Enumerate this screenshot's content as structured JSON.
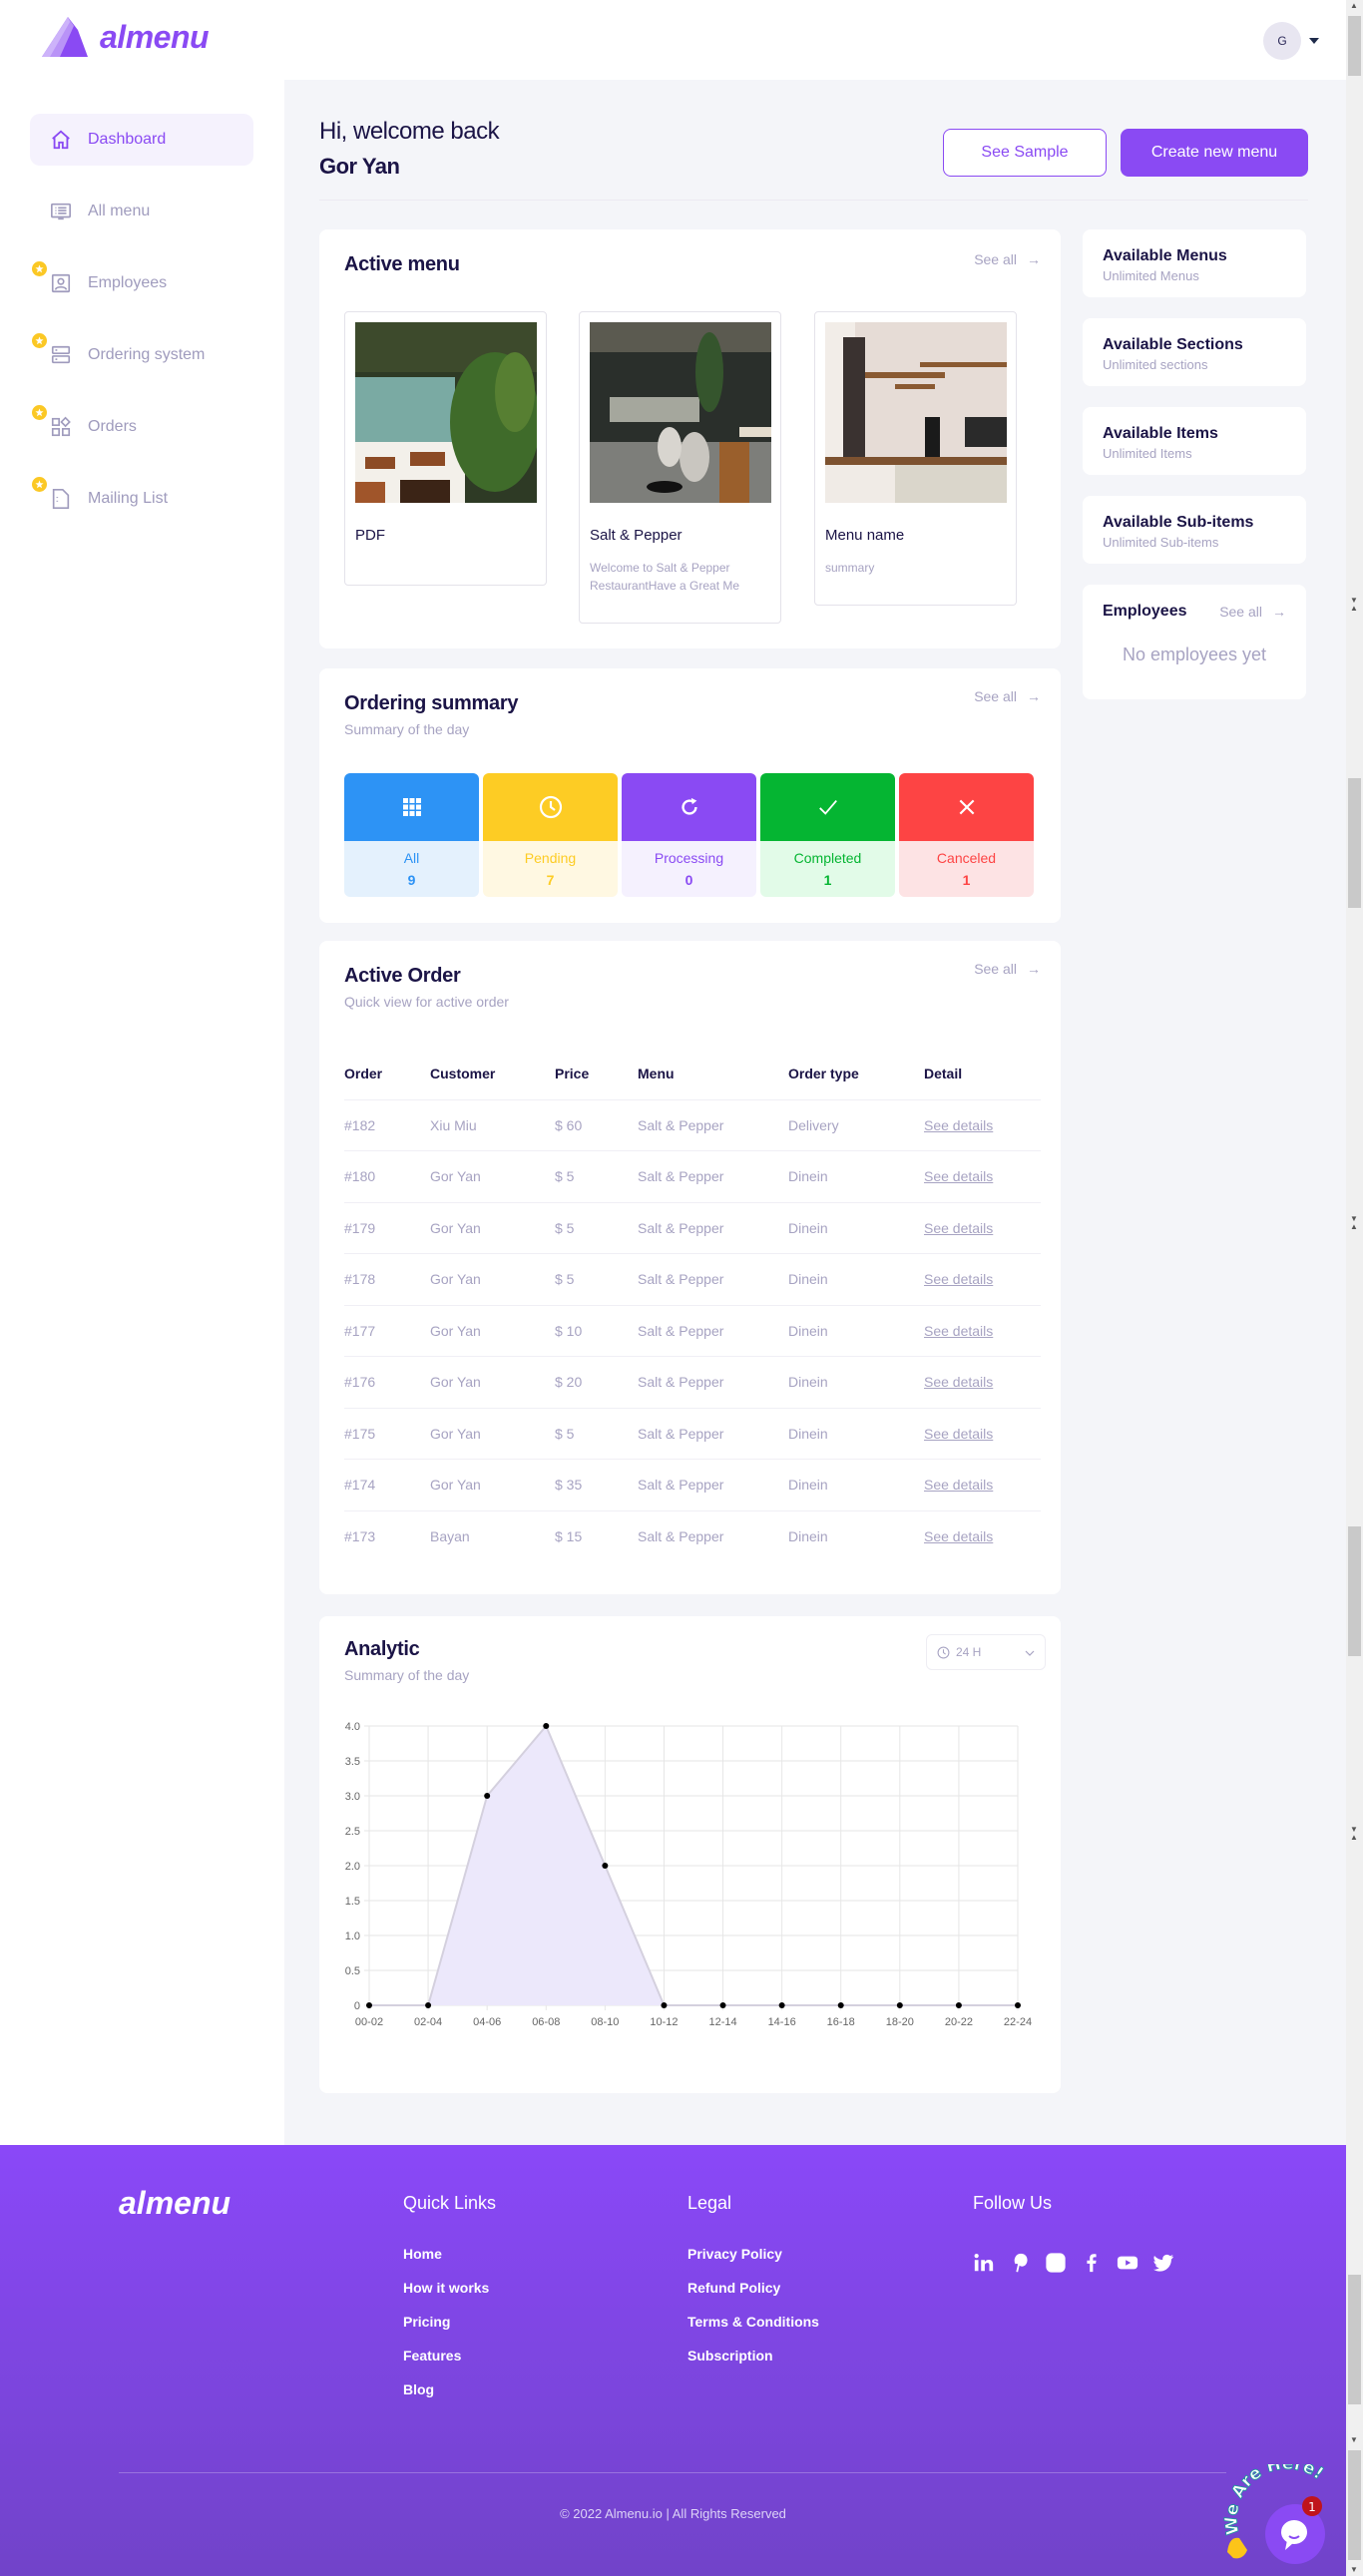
{
  "header": {
    "brand": "almenu",
    "avatar_initial": "G"
  },
  "sidebar": {
    "items": [
      {
        "label": "Dashboard",
        "icon": "home-icon",
        "active": true,
        "premium": false
      },
      {
        "label": "All menu",
        "icon": "menu-list-icon",
        "active": false,
        "premium": false
      },
      {
        "label": "Employees",
        "icon": "employee-badge-icon",
        "active": false,
        "premium": true
      },
      {
        "label": "Ordering system",
        "icon": "server-icon",
        "active": false,
        "premium": true
      },
      {
        "label": "Orders",
        "icon": "grid-diamond-icon",
        "active": false,
        "premium": true
      },
      {
        "label": "Mailing List",
        "icon": "document-icon",
        "active": false,
        "premium": true
      }
    ]
  },
  "greeting": {
    "hi": "Hi, welcome back",
    "name": "Gor Yan"
  },
  "actions": {
    "see_sample": "See Sample",
    "create_menu": "Create new menu"
  },
  "active_menu": {
    "title": "Active menu",
    "see_all": "See all",
    "menus": [
      {
        "name": "PDF",
        "description": ""
      },
      {
        "name": "Salt & Pepper",
        "description": "Welcome to Salt & Pepper RestaurantHave a Great Me"
      },
      {
        "name": "Menu name",
        "description": "summary"
      }
    ]
  },
  "stats": [
    {
      "title": "Available Menus",
      "sub": "Unlimited Menus"
    },
    {
      "title": "Available Sections",
      "sub": "Unlimited sections"
    },
    {
      "title": "Available Items",
      "sub": "Unlimited Items"
    },
    {
      "title": "Available Sub-items",
      "sub": "Unlimited Sub-items"
    }
  ],
  "employees": {
    "title": "Employees",
    "see_all": "See all",
    "empty": "No employees yet"
  },
  "ordering_summary": {
    "title": "Ordering summary",
    "subtitle": "Summary of the day",
    "see_all": "See all",
    "tiles": [
      {
        "label": "All",
        "count": "9",
        "icon": "grid-icon",
        "color": "#2d93f5",
        "bg": "#e4f1fd"
      },
      {
        "label": "Pending",
        "count": "7",
        "icon": "clock-icon",
        "color": "#fdcc24",
        "bg": "#fff8e2"
      },
      {
        "label": "Processing",
        "count": "0",
        "icon": "refresh-icon",
        "color": "#8a4af3",
        "bg": "#f5f1fe"
      },
      {
        "label": "Completed",
        "count": "1",
        "icon": "check-icon",
        "color": "#05b532",
        "bg": "#e2fbe8"
      },
      {
        "label": "Canceled",
        "count": "1",
        "icon": "close-icon",
        "color": "#fd4444",
        "bg": "#fde3e4"
      }
    ]
  },
  "active_order": {
    "title": "Active Order",
    "subtitle": "Quick view for active order",
    "see_all": "See all",
    "columns": [
      "Order",
      "Customer",
      "Price",
      "Menu",
      "Order type",
      "Detail"
    ],
    "rows": [
      {
        "order": "#182",
        "customer": "Xiu Miu",
        "price": "$ 60",
        "menu": "Salt & Pepper",
        "type": "Delivery",
        "detail": "See details"
      },
      {
        "order": "#180",
        "customer": "Gor Yan",
        "price": "$ 5",
        "menu": "Salt & Pepper",
        "type": "Dinein",
        "detail": "See details"
      },
      {
        "order": "#179",
        "customer": "Gor Yan",
        "price": "$ 5",
        "menu": "Salt & Pepper",
        "type": "Dinein",
        "detail": "See details"
      },
      {
        "order": "#178",
        "customer": "Gor Yan",
        "price": "$ 5",
        "menu": "Salt & Pepper",
        "type": "Dinein",
        "detail": "See details"
      },
      {
        "order": "#177",
        "customer": "Gor Yan",
        "price": "$ 10",
        "menu": "Salt & Pepper",
        "type": "Dinein",
        "detail": "See details"
      },
      {
        "order": "#176",
        "customer": "Gor Yan",
        "price": "$ 20",
        "menu": "Salt & Pepper",
        "type": "Dinein",
        "detail": "See details"
      },
      {
        "order": "#175",
        "customer": "Gor Yan",
        "price": "$ 5",
        "menu": "Salt & Pepper",
        "type": "Dinein",
        "detail": "See details"
      },
      {
        "order": "#174",
        "customer": "Gor Yan",
        "price": "$ 35",
        "menu": "Salt & Pepper",
        "type": "Dinein",
        "detail": "See details"
      },
      {
        "order": "#173",
        "customer": "Bayan",
        "price": "$ 15",
        "menu": "Salt & Pepper",
        "type": "Dinein",
        "detail": "See details"
      }
    ]
  },
  "analytic": {
    "title": "Analytic",
    "subtitle": "Summary of the day",
    "range": "24 H"
  },
  "chart_data": {
    "type": "area",
    "title": "Analytic",
    "categories": [
      "00-02",
      "02-04",
      "04-06",
      "06-08",
      "08-10",
      "10-12",
      "12-14",
      "14-16",
      "16-18",
      "18-20",
      "20-22",
      "22-24"
    ],
    "values": [
      0,
      0,
      3,
      4,
      2,
      0,
      0,
      0,
      0,
      0,
      0,
      0
    ],
    "yticks": [
      "0",
      "0.5",
      "1.0",
      "1.5",
      "2.0",
      "2.5",
      "3.0",
      "3.5",
      "4.0"
    ],
    "ylim": [
      0,
      4
    ],
    "grid": true,
    "xlabel": "",
    "ylabel": "",
    "fill_color": "#ece8fb",
    "line_color": "#d4d0de"
  },
  "footer": {
    "brand": "almenu",
    "quick_links": {
      "title": "Quick Links",
      "items": [
        "Home",
        "How it works",
        "Pricing",
        "Features",
        "Blog"
      ]
    },
    "legal": {
      "title": "Legal",
      "items": [
        "Privacy Policy",
        "Refund Policy",
        "Terms & Conditions",
        "Subscription"
      ]
    },
    "follow": {
      "title": "Follow Us",
      "icons": [
        "linkedin-icon",
        "pinterest-icon",
        "instagram-icon",
        "facebook-icon",
        "youtube-icon",
        "twitter-icon"
      ]
    },
    "copyright": "© 2022 Almenu.io | All Rights Reserved"
  },
  "chat_widget": {
    "label": "We Are Here!",
    "badge": "1"
  }
}
